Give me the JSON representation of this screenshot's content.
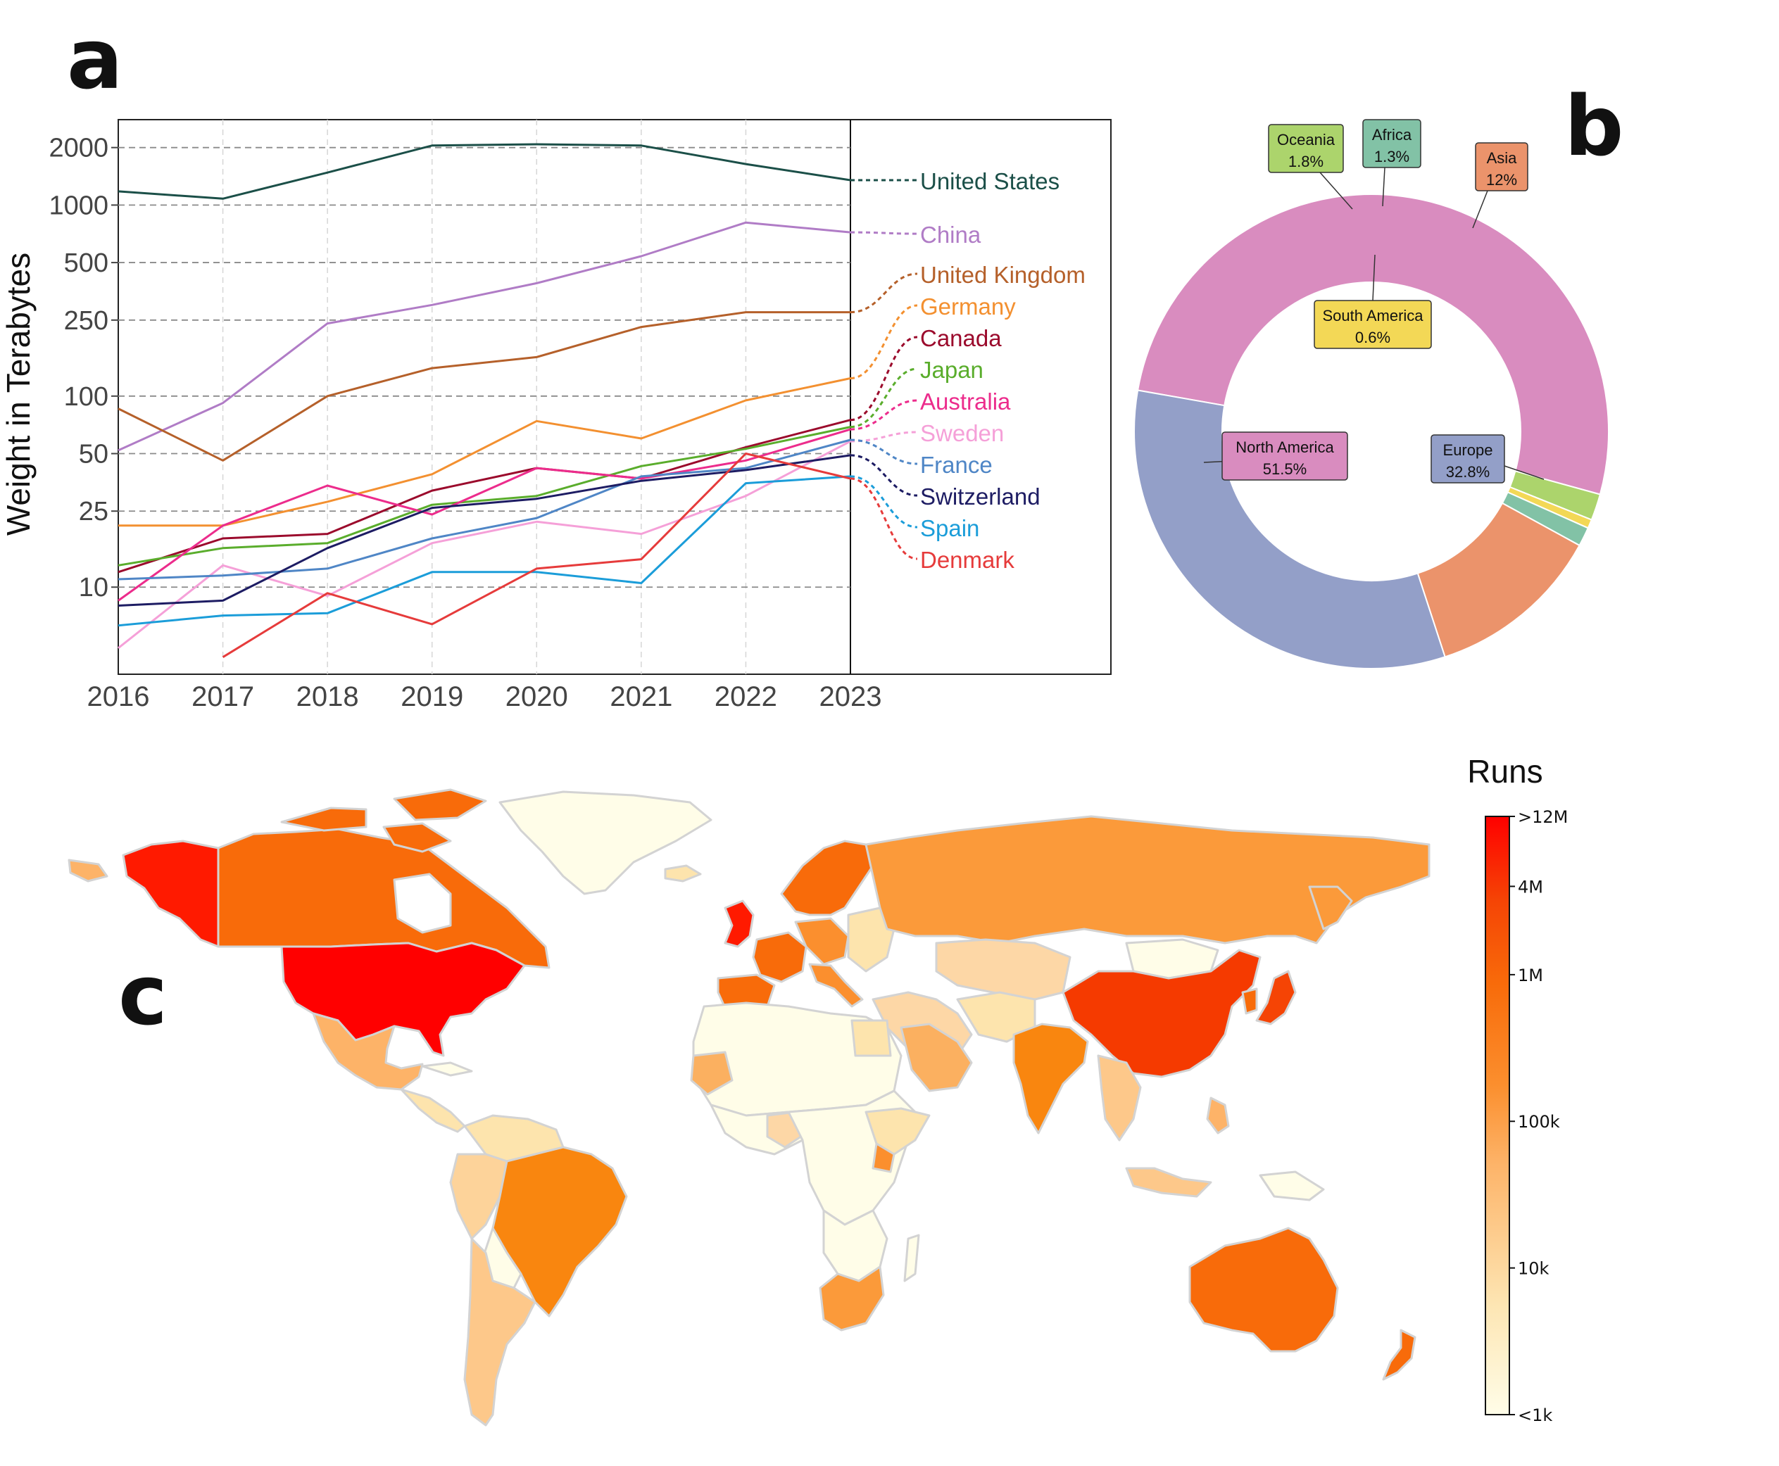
{
  "panels": {
    "a": "a",
    "b": "b",
    "c": "c"
  },
  "chart_data": [
    {
      "type": "line",
      "ylabel": "Weight in Terabytes",
      "xlabel": "",
      "y_scale": "log",
      "ylim": [
        3.5,
        2800
      ],
      "y_ticks": [
        10,
        25,
        50,
        100,
        250,
        500,
        1000,
        2000
      ],
      "y_tick_labels": [
        "10",
        "25",
        "50",
        "100",
        "250",
        "500",
        "1000",
        "2000"
      ],
      "x": [
        2016,
        2017,
        2018,
        2019,
        2020,
        2021,
        2022,
        2023
      ],
      "x_tick_labels": [
        "2016",
        "2017",
        "2018",
        "2019",
        "2020",
        "2021",
        "2022",
        "2023"
      ],
      "grid": "dashed",
      "series": [
        {
          "name": "United States",
          "color": "#1b4f48",
          "values": [
            1180,
            1080,
            1480,
            2050,
            2080,
            2050,
            1640,
            1350
          ]
        },
        {
          "name": "China",
          "color": "#b07cc6",
          "values": [
            52,
            92,
            240,
            300,
            390,
            540,
            810,
            720
          ]
        },
        {
          "name": "United Kingdom",
          "color": "#b5602a",
          "values": [
            86,
            46,
            100,
            140,
            160,
            230,
            275,
            275
          ]
        },
        {
          "name": "Germany",
          "color": "#f39030",
          "values": [
            21,
            21,
            28,
            39,
            74,
            60,
            95,
            124
          ]
        },
        {
          "name": "Canada",
          "color": "#9b0a2c",
          "values": [
            12,
            18,
            19,
            32,
            42,
            37,
            54,
            75
          ]
        },
        {
          "name": "Japan",
          "color": "#5aad2c",
          "values": [
            13,
            16,
            17,
            27,
            30,
            43,
            53,
            69
          ]
        },
        {
          "name": "Australia",
          "color": "#ec2c8c",
          "values": [
            8.5,
            21,
            34,
            24,
            42,
            37,
            46,
            67
          ]
        },
        {
          "name": "Sweden",
          "color": "#f5a0d8",
          "values": [
            4.8,
            13,
            9,
            17,
            22,
            19,
            30,
            58
          ]
        },
        {
          "name": "France",
          "color": "#4f86c6",
          "values": [
            11,
            11.5,
            12.5,
            18,
            23,
            38,
            42,
            59
          ]
        },
        {
          "name": "Switzerland",
          "color": "#1d1c63",
          "values": [
            8,
            8.5,
            16,
            26,
            29,
            36,
            41,
            49
          ]
        },
        {
          "name": "Spain",
          "color": "#1b9dd9",
          "values": [
            6.3,
            7.1,
            7.3,
            12,
            12,
            10.5,
            35,
            38
          ]
        },
        {
          "name": "Denmark",
          "color": "#e63b3b",
          "values": [
            null,
            4.3,
            9.3,
            6.4,
            12.5,
            14,
            50,
            37
          ]
        }
      ]
    },
    {
      "type": "pie",
      "variant": "donut",
      "slices": [
        {
          "label": "North America",
          "value": 51.5,
          "display": "51.5%",
          "color": "#d98cbf"
        },
        {
          "label": "Oceania",
          "value": 1.8,
          "display": "1.8%",
          "color": "#acd46c"
        },
        {
          "label": "South America",
          "value": 0.6,
          "display": "0.6%",
          "color": "#f3d856"
        },
        {
          "label": "Africa",
          "value": 1.3,
          "display": "1.3%",
          "color": "#82c2a6"
        },
        {
          "label": "Asia",
          "value": 12,
          "display": "12%",
          "color": "#eb936b"
        },
        {
          "label": "Europe",
          "value": 32.8,
          "display": "32.8%",
          "color": "#939fc8"
        }
      ]
    },
    {
      "type": "heatmap",
      "subtype": "choropleth world map",
      "legend_title": "Runs",
      "colorbar_scale": "log",
      "colorbar_ticks": [
        ">12M",
        "4M",
        "1M",
        "100k",
        "10k",
        "<1k"
      ],
      "colorbar_tick_values": [
        12000000,
        4000000,
        1000000,
        100000,
        10000,
        1000
      ],
      "colorbar_colors": [
        "#fefde6",
        "#fde4ad",
        "#fdbb71",
        "#fb9436",
        "#f8760e",
        "#f75200",
        "#ff0000"
      ]
    }
  ]
}
